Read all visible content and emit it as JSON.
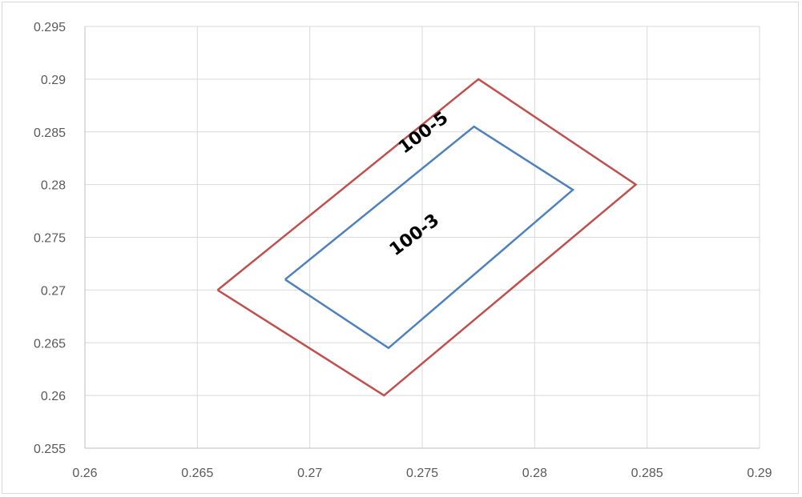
{
  "chart_data": {
    "type": "line",
    "title": "",
    "xlabel": "",
    "ylabel": "",
    "xlim": [
      0.26,
      0.29
    ],
    "ylim": [
      0.255,
      0.295
    ],
    "x_ticks": [
      "0.26",
      "0.265",
      "0.27",
      "0.275",
      "0.28",
      "0.285",
      "0.29"
    ],
    "y_ticks": [
      "0.255",
      "0.26",
      "0.265",
      "0.27",
      "0.275",
      "0.28",
      "0.285",
      "0.29",
      "0.295"
    ],
    "grid": true,
    "legend": "none",
    "series": [
      {
        "name": "100-5",
        "color": "#c0504d",
        "points": [
          [
            0.2659,
            0.27
          ],
          [
            0.2775,
            0.29
          ],
          [
            0.2845,
            0.28
          ],
          [
            0.2733,
            0.26
          ],
          [
            0.2659,
            0.27
          ]
        ]
      },
      {
        "name": "100-3",
        "color": "#4f81bd",
        "points": [
          [
            0.2689,
            0.271
          ],
          [
            0.2773,
            0.2855
          ],
          [
            0.2817,
            0.2795
          ],
          [
            0.2735,
            0.2645
          ],
          [
            0.2689,
            0.271
          ]
        ]
      }
    ]
  }
}
